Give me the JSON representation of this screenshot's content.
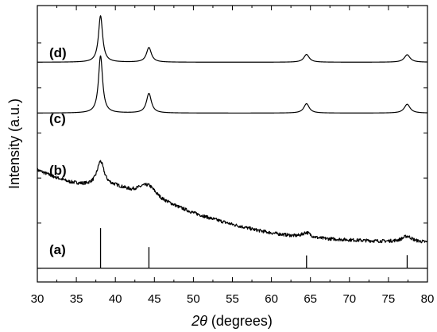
{
  "chart_data": {
    "type": "line",
    "xlabel_symbol": "2θ",
    "xlabel_unit": " (degrees)",
    "ylabel": "Intensity (a.u.)",
    "xlim": [
      30,
      80
    ],
    "ylim": [
      0,
      1
    ],
    "x_ticks": [
      30,
      35,
      40,
      45,
      50,
      55,
      60,
      65,
      70,
      75,
      80
    ],
    "grid": false,
    "legend": "none",
    "series": [
      {
        "label": "(d)",
        "kind": "crystalline",
        "baseline": 0.795,
        "peaks": [
          {
            "x": 38.1,
            "height": 0.168,
            "width": 0.32
          },
          {
            "x": 44.3,
            "height": 0.053,
            "width": 0.38
          },
          {
            "x": 64.5,
            "height": 0.028,
            "width": 0.42
          },
          {
            "x": 77.4,
            "height": 0.027,
            "width": 0.45
          }
        ]
      },
      {
        "label": "(c)",
        "kind": "crystalline",
        "baseline": 0.611,
        "peaks": [
          {
            "x": 38.1,
            "height": 0.207,
            "width": 0.32
          },
          {
            "x": 44.3,
            "height": 0.071,
            "width": 0.38
          },
          {
            "x": 64.5,
            "height": 0.034,
            "width": 0.42
          },
          {
            "x": 77.4,
            "height": 0.032,
            "width": 0.45
          }
        ]
      },
      {
        "label": "(b)",
        "kind": "amorphous",
        "background": [
          [
            30.0,
            0.405
          ],
          [
            32.0,
            0.382
          ],
          [
            34.0,
            0.362
          ],
          [
            36.0,
            0.352
          ],
          [
            40.0,
            0.347
          ],
          [
            42.0,
            0.333
          ],
          [
            43.5,
            0.338
          ],
          [
            45.0,
            0.318
          ],
          [
            46.0,
            0.298
          ],
          [
            48.0,
            0.272
          ],
          [
            50.0,
            0.25
          ],
          [
            52.0,
            0.232
          ],
          [
            55.0,
            0.208
          ],
          [
            58.0,
            0.188
          ],
          [
            60.0,
            0.177
          ],
          [
            63.0,
            0.165
          ],
          [
            66.0,
            0.157
          ],
          [
            70.0,
            0.152
          ],
          [
            74.0,
            0.147
          ],
          [
            77.0,
            0.146
          ],
          [
            80.0,
            0.143
          ]
        ],
        "peaks": [
          {
            "x": 38.1,
            "height": 0.087,
            "width": 0.55
          },
          {
            "x": 44.3,
            "height": 0.022,
            "width": 0.8
          },
          {
            "x": 64.5,
            "height": 0.018,
            "width": 0.65
          },
          {
            "x": 77.4,
            "height": 0.02,
            "width": 0.75
          }
        ],
        "noise": 0.006
      }
    ],
    "reference": {
      "label": "(a)",
      "baseline": 0.05,
      "bars": [
        {
          "x": 38.1,
          "height": 0.145
        },
        {
          "x": 44.3,
          "height": 0.076
        },
        {
          "x": 64.5,
          "height": 0.046
        },
        {
          "x": 77.4,
          "height": 0.047
        }
      ]
    }
  }
}
